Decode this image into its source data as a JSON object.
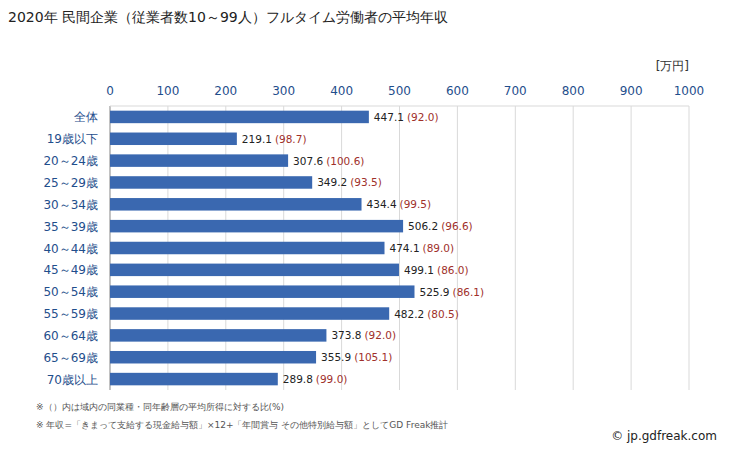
{
  "chart_data": {
    "type": "bar",
    "orientation": "horizontal",
    "title": "2020年 民間企業（従業者数10～99人）フルタイム労働者の平均年収",
    "xlabel": "[万円]",
    "categories": [
      "全体",
      "19歳以下",
      "20～24歳",
      "25～29歳",
      "30～34歳",
      "35～39歳",
      "40～44歳",
      "45～49歳",
      "50～54歳",
      "55～59歳",
      "60～64歳",
      "65～69歳",
      "70歳以上"
    ],
    "values": [
      447.1,
      219.1,
      307.6,
      349.2,
      434.4,
      506.2,
      474.1,
      499.1,
      525.9,
      482.2,
      373.8,
      355.9,
      289.8
    ],
    "ratio_labels": [
      "(92.0)",
      "(98.7)",
      "(100.6)",
      "(93.5)",
      "(99.5)",
      "(96.6)",
      "(89.0)",
      "(86.0)",
      "(86.1)",
      "(80.5)",
      "(92.0)",
      "(105.1)",
      "(99.0)"
    ],
    "color": "#3a68b0",
    "xlim": [
      0,
      1000
    ],
    "xticks": [
      0,
      100,
      200,
      300,
      400,
      500,
      600,
      700,
      800,
      900,
      1000
    ],
    "grid": true,
    "data_labels": true,
    "annotations": [
      "※（）内は域内の同業種・同年齢層の平均所得に対する比(%)",
      "※ 年収=「きまって支給する現金給与額」×12+「年間賞与 その他特別給与額」としてGD Freak推計"
    ],
    "source": "© jp.gdfreak.com"
  }
}
